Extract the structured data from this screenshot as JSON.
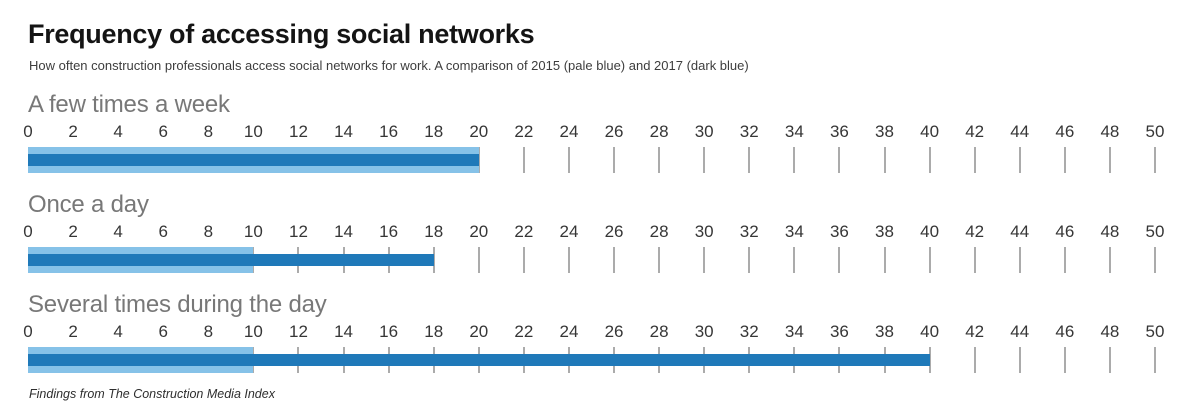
{
  "header": {
    "title": "Frequency of accessing social networks",
    "subtitle": "How often construction professionals access social networks for work. A comparison of 2015 (pale blue) and 2017 (dark blue)"
  },
  "footer": {
    "source": "Findings from The Construction Media Index"
  },
  "colors": {
    "pale_blue_2015": "#86C2E8",
    "dark_blue_2017": "#1F79B9",
    "tick_mark": "#ABABAB",
    "row_label": "#787878",
    "tick_label": "#363636"
  },
  "chart_data": {
    "type": "bar",
    "orientation": "horizontal",
    "title": "Frequency of accessing social networks",
    "categories": [
      "A few times a week",
      "Once a day",
      "Several times during the day"
    ],
    "series": [
      {
        "name": "2015 (pale blue)",
        "color": "#86C2E8",
        "values": [
          20,
          10,
          10
        ]
      },
      {
        "name": "2017 (dark blue)",
        "color": "#1F79B9",
        "values": [
          20,
          18,
          40
        ]
      }
    ],
    "xlim": [
      0,
      50
    ],
    "xticks": [
      0,
      2,
      4,
      6,
      8,
      10,
      12,
      14,
      16,
      18,
      20,
      22,
      24,
      26,
      28,
      30,
      32,
      34,
      36,
      38,
      40,
      42,
      44,
      46,
      48,
      50
    ],
    "grid": "vertical-tick-marks",
    "legend": "described-in-subtitle"
  }
}
